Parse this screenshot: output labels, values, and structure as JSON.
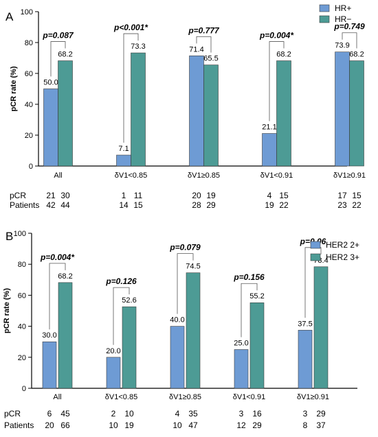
{
  "chart_data": [
    {
      "panel": "A",
      "type": "bar",
      "ylabel": "pCR rate (%)",
      "ylim": [
        0,
        100
      ],
      "yticks": [
        0,
        20,
        40,
        60,
        80,
        100
      ],
      "categories": [
        "All",
        "δV1<0.85",
        "δV1≥0.85",
        "δV1<0.91",
        "δV1≥0.91"
      ],
      "series": [
        {
          "name": "HR+",
          "color": "#6e9bd4",
          "values": [
            50.0,
            7.1,
            71.4,
            21.1,
            73.9
          ],
          "labels": [
            "50.0",
            "7.1",
            "71.4",
            "21.1",
            "73.9"
          ]
        },
        {
          "name": "HR−",
          "color": "#4d9b95",
          "values": [
            68.2,
            73.3,
            65.5,
            68.2,
            68.2
          ],
          "labels": [
            "68.2",
            "73.3",
            "65.5",
            "68.2",
            "68.2"
          ]
        }
      ],
      "pvalues": [
        "p=0.087",
        "p<0.001*",
        "p=0.777",
        "p=0.004*",
        "p=0.749"
      ],
      "legend_position": "top-right",
      "table": {
        "rows": [
          {
            "label": "pCR",
            "values": [
              [
                "21",
                "30"
              ],
              [
                "1",
                "11"
              ],
              [
                "20",
                "19"
              ],
              [
                "4",
                "15"
              ],
              [
                "17",
                "15"
              ]
            ]
          },
          {
            "label": "Patients",
            "values": [
              [
                "42",
                "44"
              ],
              [
                "14",
                "15"
              ],
              [
                "28",
                "29"
              ],
              [
                "19",
                "22"
              ],
              [
                "23",
                "22"
              ]
            ]
          }
        ]
      }
    },
    {
      "panel": "B",
      "type": "bar",
      "ylabel": "pCR rate (%)",
      "ylim": [
        0,
        100
      ],
      "yticks": [
        0,
        20,
        40,
        60,
        80,
        100
      ],
      "categories": [
        "All",
        "δV1<0.85",
        "δV1≥0.85",
        "δV1<0.91",
        "δV1≥0.91"
      ],
      "series": [
        {
          "name": "HER2 2+",
          "color": "#6e9bd4",
          "values": [
            30.0,
            20.0,
            40.0,
            25.0,
            37.5
          ],
          "labels": [
            "30.0",
            "20.0",
            "40.0",
            "25.0",
            "37.5"
          ]
        },
        {
          "name": "HER2 3+",
          "color": "#4d9b95",
          "values": [
            68.2,
            52.6,
            74.5,
            55.2,
            78.4
          ],
          "labels": [
            "68.2",
            "52.6",
            "74.5",
            "55.2",
            "78.4"
          ]
        }
      ],
      "pvalues": [
        "p=0.004*",
        "p=0.126",
        "p=0.079",
        "p=0.156",
        "p=0.06"
      ],
      "legend_position": "top-right",
      "table": {
        "rows": [
          {
            "label": "pCR",
            "values": [
              [
                "6",
                "45"
              ],
              [
                "2",
                "10"
              ],
              [
                "4",
                "35"
              ],
              [
                "3",
                "16"
              ],
              [
                "3",
                "29"
              ]
            ]
          },
          {
            "label": "Patients",
            "values": [
              [
                "20",
                "66"
              ],
              [
                "10",
                "19"
              ],
              [
                "10",
                "47"
              ],
              [
                "12",
                "29"
              ],
              [
                "8",
                "37"
              ]
            ]
          }
        ]
      }
    }
  ]
}
